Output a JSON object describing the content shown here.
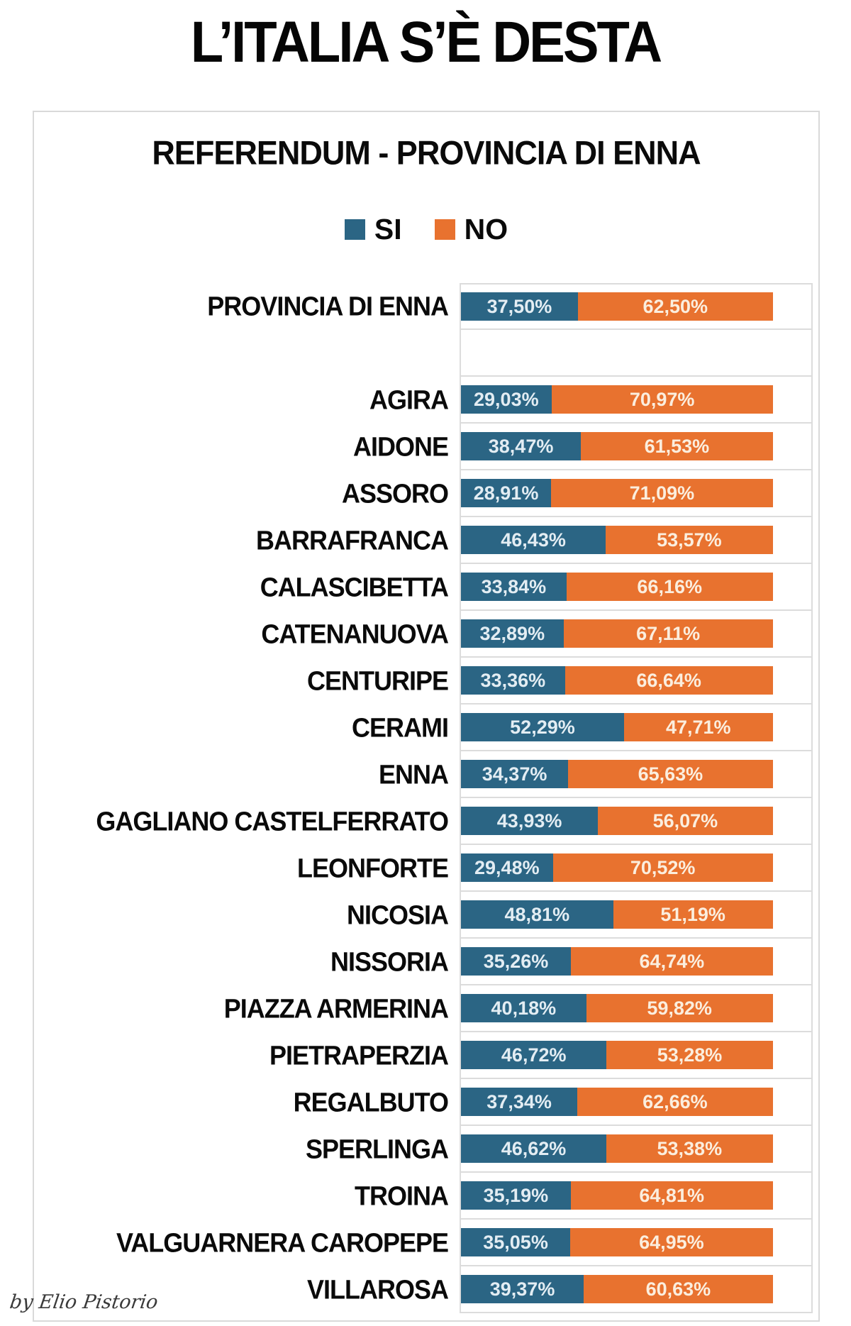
{
  "page": {
    "title": "L’ITALIA S’È DESTA",
    "watermark": "by Elio Pistorio"
  },
  "chart_data": {
    "type": "bar",
    "orientation": "horizontal",
    "stacked": true,
    "title": "REFERENDUM - PROVINCIA DI ENNA",
    "unit": "%",
    "value_format": "decimal-comma",
    "x_axis": {
      "min": 0,
      "max": 100,
      "ticks_visible": false
    },
    "grid": "category-boundaries",
    "legend_position": "top",
    "legend": [
      {
        "label": "SI",
        "color": "#2b6584"
      },
      {
        "label": "NO",
        "color": "#e8722f"
      }
    ],
    "rows": [
      {
        "label": "PROVINCIA DI ENNA",
        "si": 37.5,
        "no": 62.5,
        "si_label": "37,50%",
        "no_label": "62,50%",
        "gap_after": true
      },
      {
        "label": "AGIRA",
        "si": 29.03,
        "no": 70.97,
        "si_label": "29,03%",
        "no_label": "70,97%"
      },
      {
        "label": "AIDONE",
        "si": 38.47,
        "no": 61.53,
        "si_label": "38,47%",
        "no_label": "61,53%"
      },
      {
        "label": "ASSORO",
        "si": 28.91,
        "no": 71.09,
        "si_label": "28,91%",
        "no_label": "71,09%"
      },
      {
        "label": "BARRAFRANCA",
        "si": 46.43,
        "no": 53.57,
        "si_label": "46,43%",
        "no_label": "53,57%"
      },
      {
        "label": "CALASCIBETTA",
        "si": 33.84,
        "no": 66.16,
        "si_label": "33,84%",
        "no_label": "66,16%"
      },
      {
        "label": "CATENANUOVA",
        "si": 32.89,
        "no": 67.11,
        "si_label": "32,89%",
        "no_label": "67,11%"
      },
      {
        "label": "CENTURIPE",
        "si": 33.36,
        "no": 66.64,
        "si_label": "33,36%",
        "no_label": "66,64%"
      },
      {
        "label": "CERAMI",
        "si": 52.29,
        "no": 47.71,
        "si_label": "52,29%",
        "no_label": "47,71%"
      },
      {
        "label": "ENNA",
        "si": 34.37,
        "no": 65.63,
        "si_label": "34,37%",
        "no_label": "65,63%"
      },
      {
        "label": "GAGLIANO CASTELFERRATO",
        "si": 43.93,
        "no": 56.07,
        "si_label": "43,93%",
        "no_label": "56,07%"
      },
      {
        "label": "LEONFORTE",
        "si": 29.48,
        "no": 70.52,
        "si_label": "29,48%",
        "no_label": "70,52%"
      },
      {
        "label": "NICOSIA",
        "si": 48.81,
        "no": 51.19,
        "si_label": "48,81%",
        "no_label": "51,19%"
      },
      {
        "label": "NISSORIA",
        "si": 35.26,
        "no": 64.74,
        "si_label": "35,26%",
        "no_label": "64,74%"
      },
      {
        "label": "PIAZZA ARMERINA",
        "si": 40.18,
        "no": 59.82,
        "si_label": "40,18%",
        "no_label": "59,82%"
      },
      {
        "label": "PIETRAPERZIA",
        "si": 46.72,
        "no": 53.28,
        "si_label": "46,72%",
        "no_label": "53,28%"
      },
      {
        "label": "REGALBUTO",
        "si": 37.34,
        "no": 62.66,
        "si_label": "37,34%",
        "no_label": "62,66%"
      },
      {
        "label": "SPERLINGA",
        "si": 46.62,
        "no": 53.38,
        "si_label": "46,62%",
        "no_label": "53,38%"
      },
      {
        "label": "TROINA",
        "si": 35.19,
        "no": 64.81,
        "si_label": "35,19%",
        "no_label": "64,81%"
      },
      {
        "label": "VALGUARNERA CAROPEPE",
        "si": 35.05,
        "no": 64.95,
        "si_label": "35,05%",
        "no_label": "64,95%"
      },
      {
        "label": "VILLAROSA",
        "si": 39.37,
        "no": 60.63,
        "si_label": "39,37%",
        "no_label": "60,63%"
      }
    ]
  }
}
